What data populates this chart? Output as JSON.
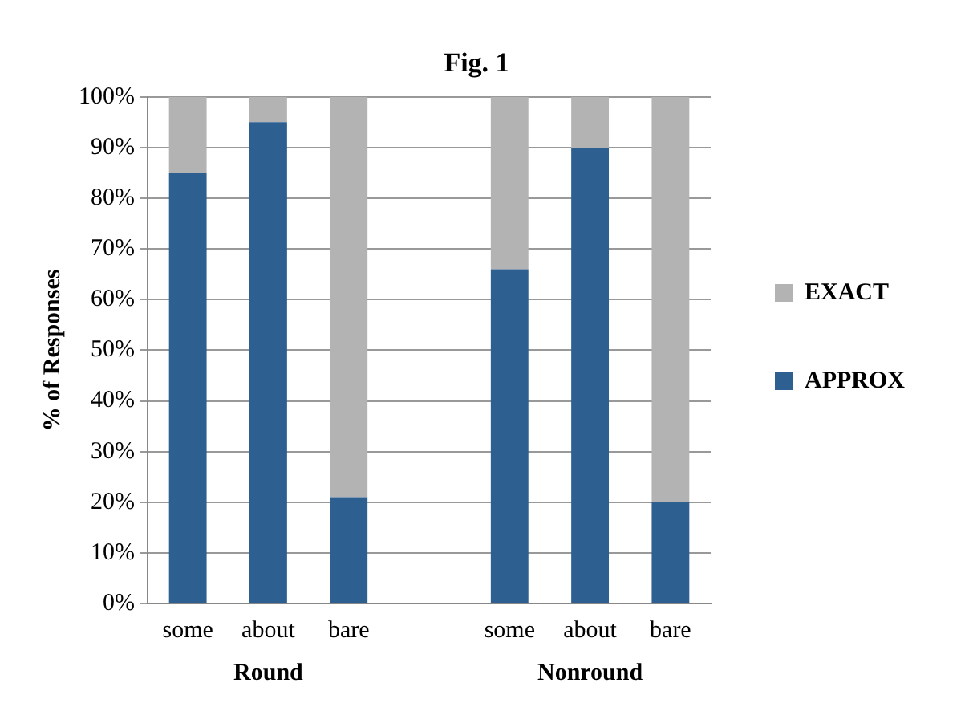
{
  "chart_data": {
    "type": "bar",
    "title": "Fig. 1",
    "ylabel": "% of Responses",
    "stacked": true,
    "categories": [
      "some",
      "about",
      "bare",
      null,
      "some",
      "about",
      "bare"
    ],
    "series": [
      {
        "name": "APPROX",
        "color": "#2e5f91",
        "values": [
          85,
          95,
          21,
          null,
          66,
          90,
          20
        ]
      },
      {
        "name": "EXACT",
        "color": "#b3b3b3",
        "values": [
          15,
          5,
          79,
          null,
          34,
          10,
          80
        ]
      }
    ],
    "ylim": [
      0,
      100
    ],
    "yticks": [
      {
        "value": 0,
        "label": "0%"
      },
      {
        "value": 10,
        "label": "10%"
      },
      {
        "value": 20,
        "label": "20%"
      },
      {
        "value": 30,
        "label": "30%"
      },
      {
        "value": 40,
        "label": "40%"
      },
      {
        "value": 50,
        "label": "50%"
      },
      {
        "value": 60,
        "label": "60%"
      },
      {
        "value": 70,
        "label": "70%"
      },
      {
        "value": 80,
        "label": "80%"
      },
      {
        "value": 90,
        "label": "90%"
      },
      {
        "value": 100,
        "label": "100%"
      }
    ],
    "annotations": [
      "Round",
      "Nonround"
    ],
    "grid": "y",
    "legend": "right"
  }
}
